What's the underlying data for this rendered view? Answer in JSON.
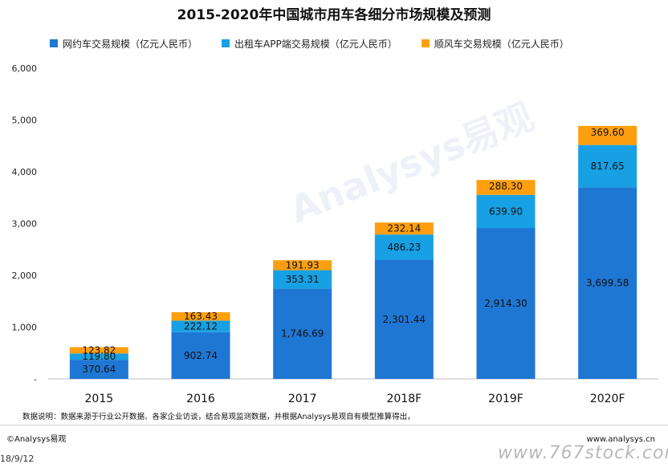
{
  "title": "2015-2020年中国城市用车各细分市场规模及预测",
  "footnote": "数据说明：数据来源于行业公开数据、各家企业访谈，结合易观监测数据，并根据Analysys易观自有模型推算得出，",
  "copyright": "©Analysys易观",
  "site_url": "www.analysys.cn",
  "date_fragment": "18/9/12",
  "watermark": "www.767stock.com",
  "brand_watermark": "Analysys易观",
  "colors": {
    "ride_hailing": "#1f77d4",
    "taxi_app": "#17a0e3",
    "carpool": "#ff9f0f"
  },
  "chart_data": {
    "type": "bar",
    "stacked": true,
    "title": "2015-2020年中国城市用车各细分市场规模及预测",
    "categories": [
      "2015",
      "2016",
      "2017",
      "2018F",
      "2019F",
      "2020F"
    ],
    "series": [
      {
        "name": "网约车交易规模（亿元人民币）",
        "color": "#1f77d4",
        "values": [
          370.64,
          902.74,
          1746.69,
          2301.44,
          2914.3,
          3699.58
        ],
        "labels": [
          "370.64",
          "902.74",
          "1,746.69",
          "2,301.44",
          "2,914.30",
          "3,699.58"
        ]
      },
      {
        "name": "出租车APP端交易规模（亿元人民币）",
        "color": "#17a0e3",
        "values": [
          119.8,
          222.12,
          353.31,
          486.23,
          639.9,
          817.65
        ],
        "labels": [
          "119.80",
          "222.12",
          "353.31",
          "486.23",
          "639.90",
          "817.65"
        ]
      },
      {
        "name": "顺风车交易规模（亿元人民币）",
        "color": "#ff9f0f",
        "values": [
          123.82,
          163.43,
          191.93,
          232.14,
          288.3,
          369.6
        ],
        "labels": [
          "123.82",
          "163.43",
          "191.93",
          "232.14",
          "288.30",
          "369.60"
        ]
      }
    ],
    "ylim": [
      0,
      6000
    ],
    "yticks": [
      0,
      1000,
      2000,
      3000,
      4000,
      5000,
      6000
    ],
    "ytick_labels": [
      "-",
      "1,000",
      "2,000",
      "3,000",
      "4,000",
      "5,000",
      "6,000"
    ],
    "xlabel": "",
    "ylabel": "",
    "grid": false,
    "legend_position": "top"
  }
}
